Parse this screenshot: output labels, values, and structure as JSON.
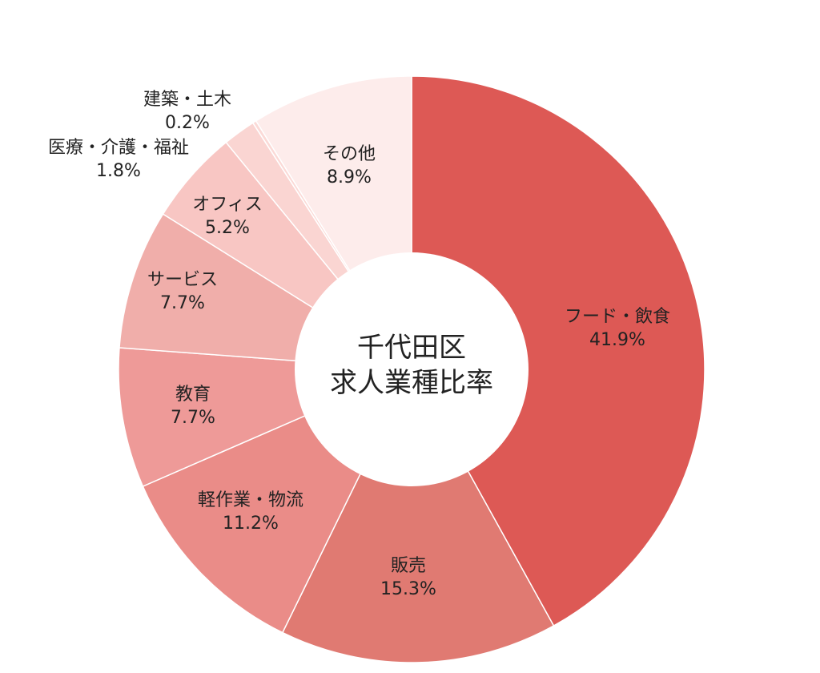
{
  "chart_data": {
    "type": "pie",
    "center_title": [
      "千代田区",
      "求人業種比率"
    ],
    "slices": [
      {
        "label": "フード・飲食",
        "value_label": "41.9%",
        "value": 41.9,
        "color": "#dd5955"
      },
      {
        "label": "販売",
        "value_label": "15.3%",
        "value": 15.3,
        "color": "#e07a72"
      },
      {
        "label": "軽作業・物流",
        "value_label": "11.2%",
        "value": 11.2,
        "color": "#ea8c88"
      },
      {
        "label": "教育",
        "value_label": "7.7%",
        "value": 7.7,
        "color": "#ee9a98"
      },
      {
        "label": "サービス",
        "value_label": "7.7%",
        "value": 7.7,
        "color": "#f0aeaa"
      },
      {
        "label": "オフィス",
        "value_label": "5.2%",
        "value": 5.2,
        "color": "#f8c6c3"
      },
      {
        "label": "医療・介護・福祉",
        "value_label": "1.8%",
        "value": 1.8,
        "color": "#fad5d2"
      },
      {
        "label": "建築・土木",
        "value_label": "0.2%",
        "value": 0.2,
        "color": "#fbdad7"
      },
      {
        "label": "その他",
        "value_label": "8.9%",
        "value": 8.9,
        "color": "#fdeceb"
      }
    ]
  }
}
